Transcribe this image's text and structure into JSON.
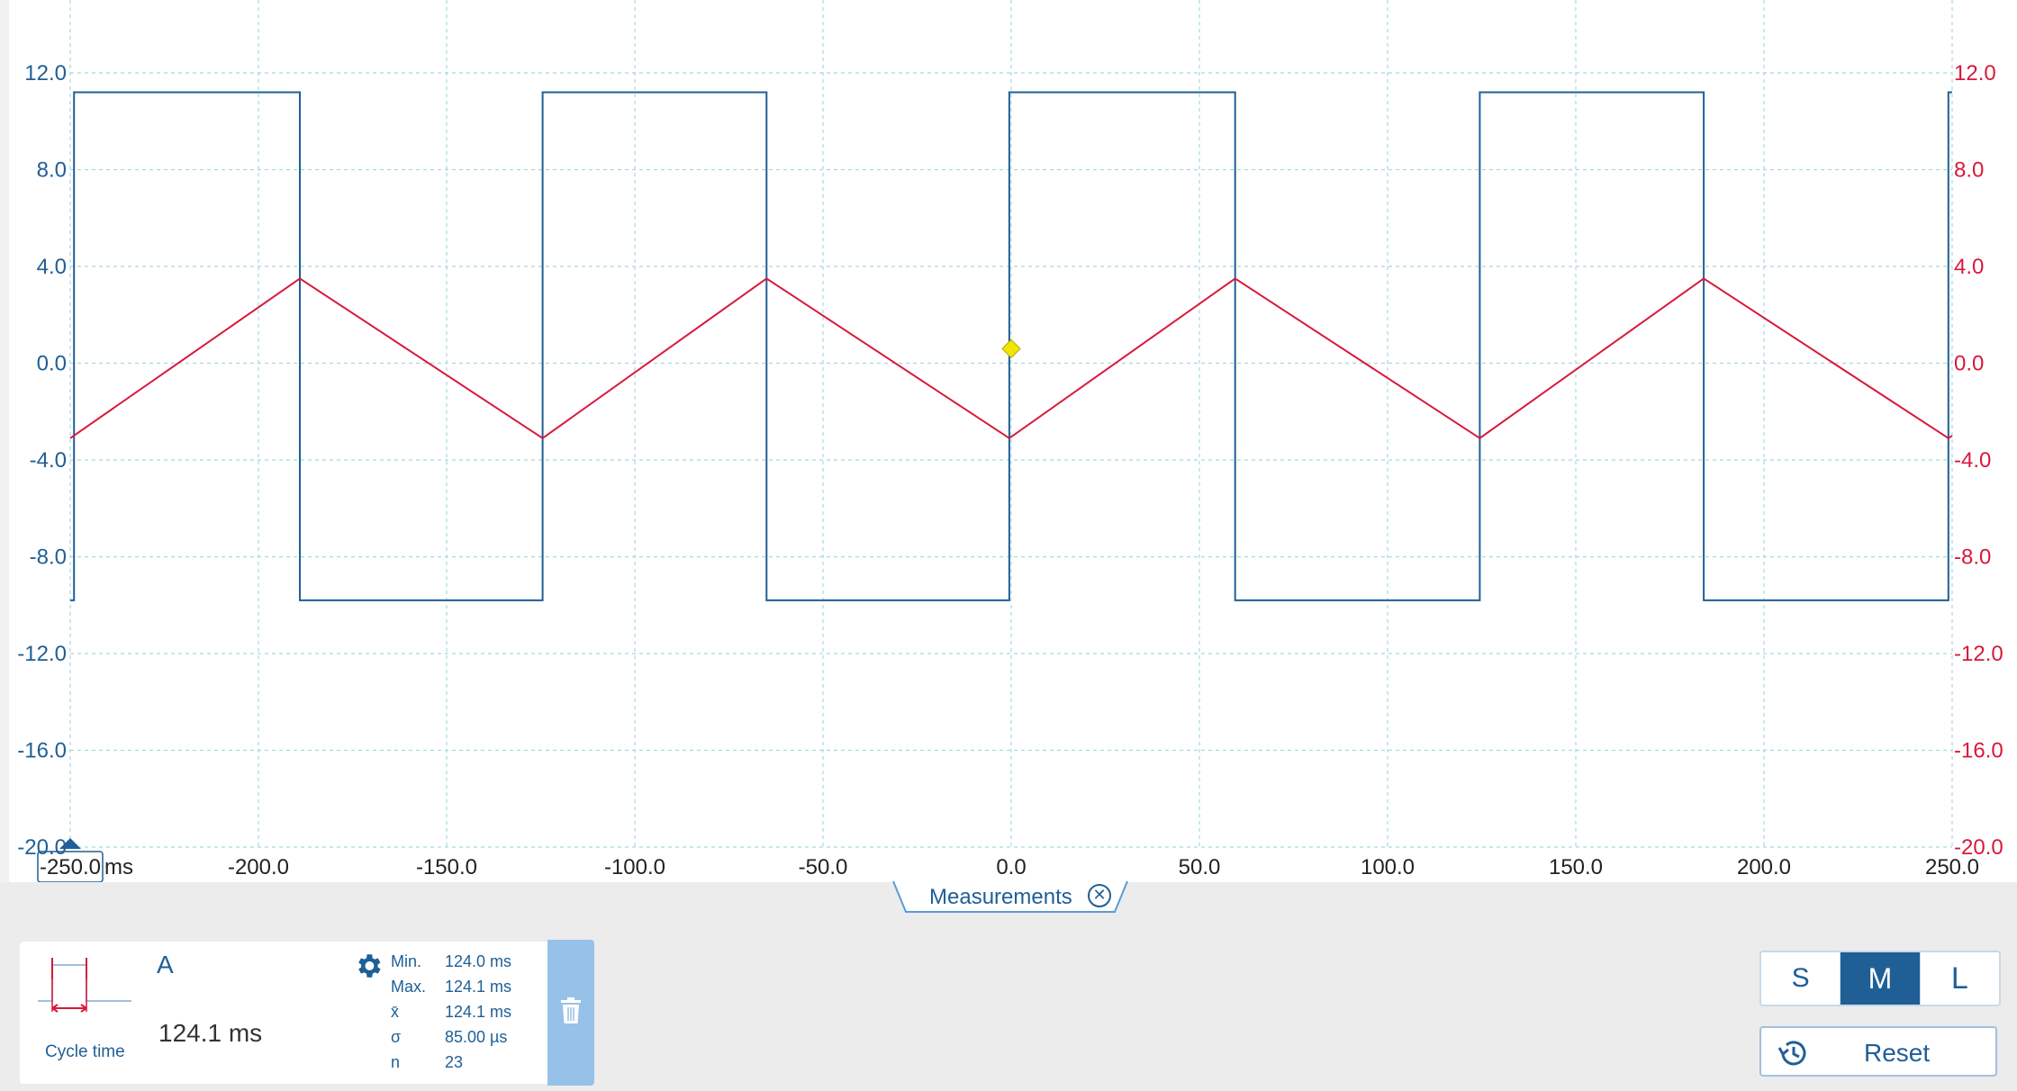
{
  "chart_data": {
    "type": "line",
    "x_unit": "ms",
    "xlim": [
      -250.0,
      250.0
    ],
    "x_ticks": [
      "-250.0",
      "-200.0",
      "-150.0",
      "-100.0",
      "-50.0",
      "0.0",
      "50.0",
      "100.0",
      "150.0",
      "200.0",
      "250.0"
    ],
    "ylim": [
      -20.0,
      12.0
    ],
    "y_ticks_left": [
      "12.0",
      "8.0",
      "4.0",
      "0.0",
      "-4.0",
      "-8.0",
      "-12.0",
      "-16.0",
      "-20.0"
    ],
    "y_ticks_right": [
      "12.0",
      "8.0",
      "4.0",
      "0.0",
      "-4.0",
      "-8.0",
      "-12.0",
      "-16.0",
      "-20.0"
    ],
    "grid": true,
    "series": [
      {
        "color": "#1f5f96",
        "waveform": "square",
        "high": 11.2,
        "low": -9.8,
        "x": [
          -250.0,
          -249.0,
          -249.0,
          -189.0,
          -189.0,
          -124.5,
          -124.5,
          -65.0,
          -65.0,
          -0.5,
          -0.5,
          59.5,
          59.5,
          124.5,
          124.5,
          184.0,
          184.0,
          249.0,
          249.0,
          250.0
        ],
        "values": [
          -9.8,
          -9.8,
          11.2,
          11.2,
          -9.8,
          -9.8,
          11.2,
          11.2,
          -9.8,
          -9.8,
          11.2,
          11.2,
          -9.8,
          -9.8,
          11.2,
          11.2,
          -9.8,
          -9.8,
          11.2,
          11.2
        ]
      },
      {
        "color": "#d9183b",
        "waveform": "triangle",
        "x": [
          -250.0,
          -189.0,
          -124.5,
          -65.0,
          -0.5,
          59.5,
          124.5,
          184.0,
          249.0,
          250.0
        ],
        "values": [
          -3.1,
          3.5,
          -3.1,
          3.5,
          -3.1,
          3.5,
          -3.1,
          3.5,
          -3.1,
          -3.0
        ]
      }
    ],
    "trigger": {
      "x": 0.0,
      "y": 0.6,
      "color": "#f2e600"
    }
  },
  "x_unit_label": "ms",
  "measurements_tab": {
    "label": "Measurements"
  },
  "measurement": {
    "channel": "A",
    "type": "Cycle time",
    "value": "124.1 ms",
    "stats": [
      {
        "key": "Min.",
        "value": "124.0 ms"
      },
      {
        "key": "Max.",
        "value": "124.1 ms"
      },
      {
        "key": "x̄",
        "value": "124.1 ms"
      },
      {
        "key": "σ",
        "value": "85.00 µs"
      },
      {
        "key": "n",
        "value": "23"
      }
    ]
  },
  "size_buttons": [
    "S",
    "M",
    "L"
  ],
  "size_selected": "M",
  "reset_label": "Reset",
  "colors": {
    "blue": "#1f5f96",
    "red": "#d9183b",
    "grid": "#a8d8e0",
    "panel": "#ececec"
  }
}
